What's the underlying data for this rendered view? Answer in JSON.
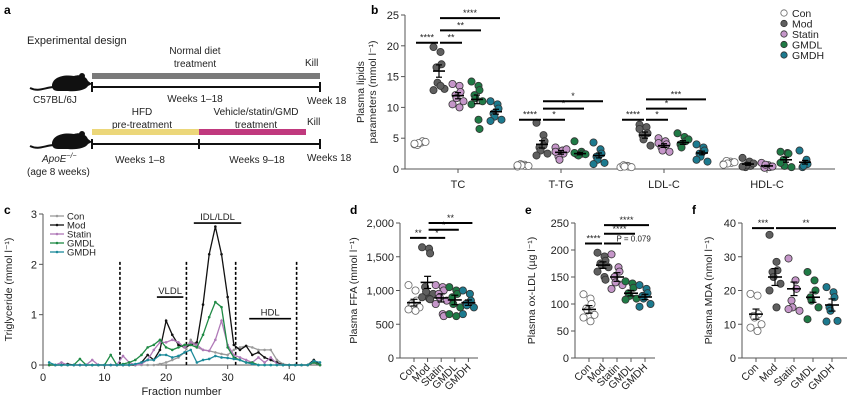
{
  "colors": {
    "Con": "#ffffff",
    "Mod": "#5f5f5f",
    "Statin": "#c596c9",
    "GMDL": "#1f7a45",
    "GMDH": "#1c7a8f",
    "normal_bar": "#7a7a7a",
    "hfd_bar": "#ecd77a",
    "treat_bar": "#c0397e",
    "hfd_text": "#b5a46a",
    "treat_text": "#c0397e",
    "kill_text": "#6d6d40",
    "grey_text": "#7a7a7a"
  },
  "panel_a": {
    "label": "a",
    "title": "Experimental design",
    "mouse1": "C57BL/6J",
    "mouse2_name": "ApoE",
    "mouse2_sup": "−/−",
    "mouse2_age": "(age 8 weeks)",
    "normal_diet_line1": "Normal diet",
    "normal_diet_line2": "treatment",
    "weeks_1_18": "Weeks 1–18",
    "kill1": "Kill",
    "week18_1": "Week 18",
    "hfd_line1": "HFD",
    "hfd_line2": "pre-treatment",
    "treat_line1": "Vehicle/statin/GMD",
    "treat_line2": "treatment",
    "kill2": "Kill",
    "weeks_1_8": "Weeks 1–8",
    "weeks_9_18": "Weeks 9–18",
    "week18_2": "Weeks 18"
  },
  "chart_data": [
    {
      "panel": "b",
      "type": "scatter",
      "title": "",
      "ylabel": "Plasma lipids parameters (mmol l⁻¹)",
      "ylim": [
        0,
        25
      ],
      "yticks": [
        0,
        5,
        10,
        15,
        20,
        25
      ],
      "categories": [
        "TC",
        "T-TG",
        "LDL-C",
        "HDL-C"
      ],
      "legend": [
        "Con",
        "Mod",
        "Statin",
        "GMDL",
        "GMDH"
      ],
      "legend_position": "top-right",
      "series": [
        {
          "name": "Con",
          "means": [
            4.2,
            0.6,
            0.4,
            1.0
          ],
          "sem": [
            0.2,
            0.1,
            0.1,
            0.1
          ],
          "points": [
            [
              4.0,
              4.3,
              4.5,
              3.9,
              4.2,
              4.4,
              4.1
            ],
            [
              0.4,
              0.7,
              0.5,
              0.8,
              0.6,
              0.5,
              0.6
            ],
            [
              0.3,
              0.5,
              0.4,
              0.6,
              0.4,
              0.3
            ],
            [
              0.8,
              1.2,
              1.0,
              1.3,
              0.9,
              1.1,
              0.7
            ]
          ]
        },
        {
          "name": "Mod",
          "means": [
            15.9,
            4.0,
            5.5,
            0.8
          ],
          "sem": [
            1.0,
            0.6,
            0.5,
            0.2
          ],
          "points": [
            [
              19.8,
              19.0,
              17.0,
              16.5,
              14.0,
              13.0,
              12.8,
              13.5
            ],
            [
              7.5,
              5.5,
              4.5,
              3.5,
              3.0,
              2.5,
              2.2,
              3.8
            ],
            [
              7.2,
              6.8,
              5.8,
              5.5,
              4.8,
              3.8,
              6.5
            ],
            [
              1.8,
              1.2,
              0.5,
              0.3,
              0.6,
              0.9,
              0.4
            ]
          ]
        },
        {
          "name": "Statin",
          "means": [
            11.9,
            2.7,
            3.8,
            0.5
          ],
          "sem": [
            0.5,
            0.3,
            0.3,
            0.1
          ],
          "points": [
            [
              13.8,
              13.5,
              12.5,
              12.0,
              11.5,
              11.0,
              10.5,
              10.0
            ],
            [
              3.5,
              3.0,
              2.5,
              2.0,
              1.5,
              3.2,
              2.8
            ],
            [
              5.0,
              4.5,
              4.0,
              3.5,
              3.0,
              2.8,
              4.2
            ],
            [
              1.0,
              0.6,
              0.3,
              0.2,
              0.7,
              0.4
            ]
          ]
        },
        {
          "name": "GMDL",
          "means": [
            11.3,
            2.5,
            4.3,
            1.5
          ],
          "sem": [
            0.7,
            0.2,
            0.3,
            0.4
          ],
          "points": [
            [
              14.2,
              13.5,
              12.8,
              12.0,
              11.5,
              11.0,
              10.5,
              8.0,
              6.5
            ],
            [
              4.5,
              2.8,
              2.5,
              2.3,
              2.2,
              2.4,
              2.6
            ],
            [
              5.8,
              5.2,
              4.5,
              4.0,
              3.5,
              4.8
            ],
            [
              2.8,
              2.6,
              2.5,
              1.5,
              0.5,
              0.3,
              1.0
            ]
          ]
        },
        {
          "name": "GMDH",
          "means": [
            9.3,
            2.2,
            2.6,
            1.1
          ],
          "sem": [
            0.4,
            0.4,
            0.3,
            0.3
          ],
          "points": [
            [
              11.0,
              10.5,
              9.8,
              9.0,
              8.5,
              8.0,
              7.8
            ],
            [
              4.3,
              3.2,
              2.5,
              2.0,
              1.5,
              1.0,
              0.8
            ],
            [
              4.0,
              3.5,
              3.0,
              2.5,
              2.0,
              1.2,
              1.5
            ],
            [
              3.0,
              1.5,
              0.8,
              0.3,
              0.5
            ]
          ]
        }
      ],
      "significance": [
        {
          "group": "TC",
          "from": "Con",
          "to": "Mod",
          "label": "****",
          "y": 20.5
        },
        {
          "group": "TC",
          "from": "Mod",
          "to": "Statin",
          "label": "**",
          "y": 20.5
        },
        {
          "group": "TC",
          "from": "Mod",
          "to": "GMDL",
          "label": "**",
          "y": 22.5
        },
        {
          "group": "TC",
          "from": "Mod",
          "to": "GMDH",
          "label": "****",
          "y": 24.5
        },
        {
          "group": "T-TG",
          "from": "Con",
          "to": "Mod",
          "label": "****",
          "y": 8.0
        },
        {
          "group": "T-TG",
          "from": "Mod",
          "to": "Statin",
          "label": "*",
          "y": 8.0
        },
        {
          "group": "T-TG",
          "from": "Mod",
          "to": "GMDL",
          "label": "*",
          "y": 9.8
        },
        {
          "group": "T-TG",
          "from": "Mod",
          "to": "GMDH",
          "label": "*",
          "y": 11.0
        },
        {
          "group": "LDL-C",
          "from": "Con",
          "to": "Mod",
          "label": "****",
          "y": 8.0
        },
        {
          "group": "LDL-C",
          "from": "Mod",
          "to": "Statin",
          "label": "*",
          "y": 8.0
        },
        {
          "group": "LDL-C",
          "from": "Mod",
          "to": "GMDL",
          "label": "*",
          "y": 9.8
        },
        {
          "group": "LDL-C",
          "from": "Mod",
          "to": "GMDH",
          "label": "***",
          "y": 11.3
        }
      ]
    },
    {
      "panel": "c",
      "type": "line",
      "xlabel": "Fraction number",
      "ylabel": "Triglyceride (mmol l⁻¹)",
      "xlim": [
        0,
        45
      ],
      "ylim": [
        0,
        3
      ],
      "xticks": [
        0,
        10,
        20,
        30,
        40
      ],
      "yticks": [
        0,
        1,
        2,
        3
      ],
      "legend_position": "top-left",
      "x": [
        1,
        2,
        3,
        4,
        5,
        6,
        7,
        8,
        9,
        10,
        11,
        12,
        13,
        14,
        15,
        16,
        17,
        18,
        19,
        20,
        21,
        22,
        23,
        24,
        25,
        26,
        27,
        28,
        29,
        30,
        31,
        32,
        33,
        34,
        35,
        36,
        37,
        38,
        39,
        40,
        41,
        42,
        43,
        44,
        45
      ],
      "series": [
        {
          "name": "Con",
          "color": "#9a9a9a",
          "values": [
            0,
            0,
            0,
            0,
            0,
            0,
            0,
            0,
            0,
            0,
            0,
            0,
            0,
            0,
            0,
            0,
            0,
            0,
            0.02,
            0.05,
            0.1,
            0.15,
            0.25,
            0.5,
            0.35,
            0.3,
            0.28,
            0.25,
            0.22,
            0.2,
            0.3,
            0.35,
            0.38,
            0.35,
            0.3,
            0.3,
            0.3,
            0.1,
            0.02,
            0,
            0,
            0,
            0,
            0.05,
            0
          ]
        },
        {
          "name": "Mod",
          "color": "#111111",
          "values": [
            0,
            0,
            0,
            0.02,
            0,
            0,
            0,
            0,
            0,
            0,
            0,
            0,
            0,
            0,
            0,
            0.05,
            0.2,
            0.1,
            0.3,
            0.88,
            0.6,
            0.4,
            0.35,
            0.4,
            0.45,
            1.2,
            2.2,
            2.75,
            2.2,
            1.35,
            0.4,
            0.3,
            0.38,
            0.2,
            0.25,
            0.15,
            0.1,
            0.05,
            0,
            0,
            0,
            0,
            0,
            0.1,
            0
          ]
        },
        {
          "name": "Statin",
          "color": "#b07ab8",
          "values": [
            0,
            0,
            0.05,
            0,
            0,
            0,
            0,
            0.1,
            0,
            0,
            0,
            0,
            0.18,
            0.05,
            0,
            0.02,
            0.1,
            0.3,
            0.45,
            0.45,
            0.5,
            0.45,
            0.35,
            0.45,
            0.4,
            0.3,
            0.28,
            0.5,
            0.88,
            0.4,
            0.2,
            0.15,
            0.1,
            0.05,
            0.15,
            0.05,
            0.15,
            0.02,
            0,
            0,
            0,
            0,
            0,
            0.05,
            0
          ]
        },
        {
          "name": "GMDL",
          "color": "#1f8a45",
          "values": [
            0,
            0,
            0,
            0,
            0,
            0.12,
            0,
            0,
            0,
            0,
            0.2,
            0,
            0.02,
            0.05,
            0.1,
            0.2,
            0.35,
            0.4,
            0.5,
            0.35,
            0.3,
            0.35,
            0.4,
            0.4,
            0.35,
            0.6,
            0.95,
            1.25,
            1.15,
            0.35,
            0.15,
            0.1,
            0.05,
            0.05,
            0,
            0,
            0,
            0,
            0,
            0,
            0,
            0,
            0,
            0.05,
            0
          ]
        },
        {
          "name": "GMDH",
          "color": "#1c8a9a",
          "values": [
            0.05,
            0,
            0,
            0,
            0,
            0,
            0,
            0,
            0,
            0,
            0,
            0,
            0,
            0,
            0.02,
            0.05,
            0.1,
            0.1,
            0.2,
            0.2,
            0.15,
            0.18,
            0.25,
            0.3,
            0.05,
            0.1,
            0.12,
            0.18,
            0.15,
            0.14,
            0.12,
            0.1,
            0.05,
            0.02,
            0,
            0,
            0,
            0,
            0,
            0,
            0,
            0,
            0,
            0.08,
            0.05
          ]
        }
      ],
      "dashed_lines_x": [
        12.5,
        23.3,
        31.3,
        41.2
      ],
      "annotations": [
        {
          "label": "VLDL",
          "x_from": 18.5,
          "x_to": 22.8,
          "y": 1.35
        },
        {
          "label": "IDL/LDL",
          "x_from": 24.5,
          "x_to": 32.2,
          "y": 2.82
        },
        {
          "label": "HDL",
          "x_from": 33.5,
          "x_to": 40.3,
          "y": 0.92
        }
      ]
    },
    {
      "panel": "d",
      "type": "scatter",
      "ylabel": "Plasma FFA (mmol l⁻¹)",
      "ylim": [
        0,
        2000
      ],
      "yticks": [
        "0",
        "500",
        "1,000",
        "1,500",
        "2,000"
      ],
      "ytick_values": [
        0,
        500,
        1000,
        1500,
        2000
      ],
      "categories": [
        "Con",
        "Mod",
        "Statin",
        "GMDL",
        "GMDH"
      ],
      "means": [
        820,
        1120,
        890,
        860,
        820
      ],
      "sem": [
        50,
        90,
        60,
        70,
        40
      ],
      "points": [
        [
          1080,
          1000,
          850,
          800,
          780,
          750,
          720,
          700
        ],
        [
          1640,
          1620,
          1550,
          1050,
          980,
          950,
          900,
          880,
          870
        ],
        [
          1080,
          1050,
          1000,
          950,
          900,
          850,
          800,
          650,
          620
        ],
        [
          1050,
          1000,
          950,
          900,
          800,
          750,
          650,
          620
        ],
        [
          1000,
          950,
          850,
          800,
          780,
          750,
          650
        ]
      ],
      "significance": [
        {
          "from": "Con",
          "to": "Mod",
          "label": "**",
          "y": 1780
        },
        {
          "from": "Mod",
          "to": "Statin",
          "label": "*",
          "y": 1780
        },
        {
          "from": "Mod",
          "to": "GMDL",
          "label": "*",
          "y": 1900
        },
        {
          "from": "Mod",
          "to": "GMDH",
          "label": "**",
          "y": 2000
        }
      ]
    },
    {
      "panel": "e",
      "type": "scatter",
      "ylabel": "Plasma ox-LDL (µg l⁻¹)",
      "ylim": [
        0,
        250
      ],
      "yticks": [
        "0",
        "50",
        "100",
        "150",
        "200",
        "250"
      ],
      "ytick_values": [
        0,
        50,
        100,
        150,
        200,
        250
      ],
      "categories": [
        "Con",
        "Mod",
        "Statin",
        "GMDL",
        "GMDH"
      ],
      "means": [
        90,
        172,
        150,
        120,
        113
      ],
      "sem": [
        7,
        6,
        8,
        5,
        5
      ],
      "points": [
        [
          118,
          110,
          100,
          92,
          88,
          80,
          75,
          68
        ],
        [
          195,
          188,
          180,
          175,
          172,
          168,
          160,
          150,
          145
        ],
        [
          192,
          168,
          160,
          150,
          140,
          135,
          128
        ],
        [
          142,
          138,
          130,
          120,
          115,
          110,
          108
        ],
        [
          135,
          128,
          120,
          115,
          110,
          100,
          95
        ]
      ],
      "significance": [
        {
          "from": "Con",
          "to": "Mod",
          "label": "****",
          "y": 212
        },
        {
          "from": "Mod",
          "to": "Statin",
          "label": "P = 0.079",
          "y": 212
        },
        {
          "from": "Mod",
          "to": "GMDL",
          "label": "****",
          "y": 230
        },
        {
          "from": "Mod",
          "to": "GMDH",
          "label": "****",
          "y": 246
        }
      ]
    },
    {
      "panel": "f",
      "type": "scatter",
      "ylabel": "Plasma MDA (nmol l⁻¹)",
      "ylim": [
        0,
        40
      ],
      "yticks": [
        "0",
        "10",
        "20",
        "30",
        "40"
      ],
      "ytick_values": [
        0,
        10,
        20,
        30,
        40
      ],
      "categories": [
        "Con",
        "Mod",
        "Statin",
        "GMDL",
        "GMDH"
      ],
      "means": [
        13,
        24,
        20.5,
        18,
        15.7
      ],
      "sem": [
        1.5,
        2.5,
        2.0,
        1.5,
        1.8
      ],
      "points": [
        [
          19,
          18.5,
          13,
          12.5,
          12,
          10,
          9,
          8
        ],
        [
          36.5,
          28.5,
          26,
          25.5,
          24,
          22,
          20,
          15
        ],
        [
          29.5,
          23,
          20.5,
          17,
          15,
          14,
          14.5
        ],
        [
          25.5,
          23,
          20,
          18,
          17,
          15,
          11.5
        ],
        [
          21,
          19.5,
          18,
          15,
          14,
          11,
          10.8
        ]
      ],
      "significance": [
        {
          "from": "Con",
          "to": "Mod",
          "label": "***",
          "y": 38.5
        },
        {
          "from": "Mod",
          "to": "GMDH",
          "label": "**",
          "y": 38.5
        }
      ]
    }
  ]
}
